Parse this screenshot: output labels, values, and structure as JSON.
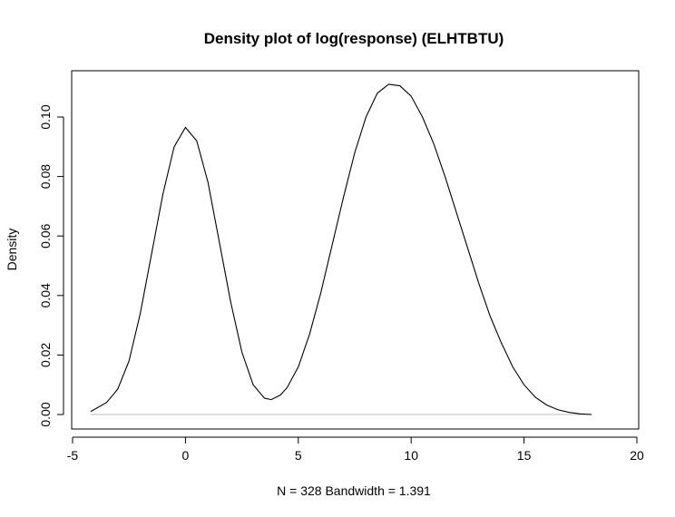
{
  "chart_data": {
    "type": "line",
    "title": "Density plot of log(response) (ELHTBTU)",
    "xlabel": "N = 328   Bandwidth = 1.391",
    "ylabel": "Density",
    "xlim": [
      -5,
      20
    ],
    "ylim": [
      0,
      0.11
    ],
    "x_ticks": [
      -5,
      0,
      5,
      10,
      15,
      20
    ],
    "x_tick_labels": [
      "-5",
      "0",
      "5",
      "10",
      "15",
      "20"
    ],
    "y_ticks": [
      0,
      0.02,
      0.04,
      0.06,
      0.08,
      0.1
    ],
    "y_tick_labels": [
      "0.00",
      "0.02",
      "0.04",
      "0.06",
      "0.08",
      "0.10"
    ],
    "grid": false,
    "baseline": 0,
    "series": [
      {
        "color": "#000000",
        "x": [
          -4.2,
          -3.5,
          -3.0,
          -2.5,
          -2.0,
          -1.5,
          -1.0,
          -0.5,
          0.0,
          0.5,
          1.0,
          1.5,
          2.0,
          2.5,
          3.0,
          3.5,
          3.8,
          4.2,
          4.5,
          5.0,
          5.5,
          6.0,
          6.5,
          7.0,
          7.5,
          8.0,
          8.5,
          9.0,
          9.5,
          10.0,
          10.5,
          11.0,
          11.5,
          12.0,
          12.5,
          13.0,
          13.5,
          14.0,
          14.5,
          15.0,
          15.5,
          16.0,
          16.5,
          17.0,
          17.5,
          18.0
        ],
        "y": [
          0.001,
          0.004,
          0.0085,
          0.018,
          0.034,
          0.054,
          0.074,
          0.09,
          0.0965,
          0.092,
          0.078,
          0.058,
          0.038,
          0.021,
          0.01,
          0.0055,
          0.005,
          0.0065,
          0.009,
          0.016,
          0.027,
          0.041,
          0.057,
          0.073,
          0.088,
          0.1,
          0.108,
          0.111,
          0.1105,
          0.107,
          0.1,
          0.091,
          0.08,
          0.068,
          0.056,
          0.044,
          0.033,
          0.024,
          0.016,
          0.01,
          0.0058,
          0.0032,
          0.0016,
          0.0007,
          0.0002,
          0.0
        ]
      }
    ]
  }
}
